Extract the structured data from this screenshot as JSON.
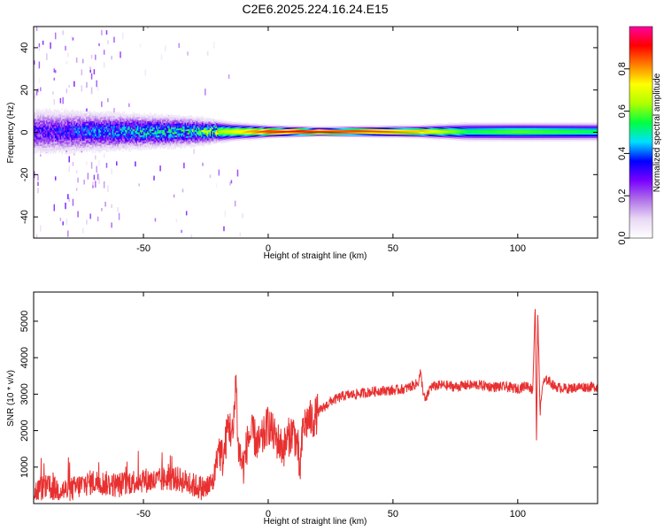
{
  "title": "C2E6.2025.224.16.24.E15",
  "chart_data": [
    {
      "type": "heatmap",
      "xlabel": "Height of straight line (km)",
      "ylabel": "Frequency (Hz)",
      "xlim": [
        -94,
        132
      ],
      "ylim": [
        -50,
        50
      ],
      "xticks": [
        -50,
        0,
        50,
        100
      ],
      "yticks": [
        -40,
        -20,
        0,
        20,
        40
      ],
      "colorbar": {
        "label": "Normalized spectral amplitude",
        "range": [
          0,
          1
        ],
        "ticks": [
          0.0,
          0.2,
          0.4,
          0.6,
          0.8
        ],
        "tick_labels": [
          "0.0",
          "0.2",
          "0.4",
          "0.6",
          "0.8"
        ],
        "colormap": [
          "#ffffff",
          "#e8d8f4",
          "#b070e8",
          "#7800ff",
          "#0000ff",
          "#00e0ff",
          "#00ff40",
          "#b0ff00",
          "#ffff00",
          "#ff8000",
          "#ff0000",
          "#ff00a0"
        ]
      },
      "band_center_hz": 0,
      "band_profile": [
        {
          "x": -90,
          "halfwidth": 8,
          "peak": 0.3
        },
        {
          "x": -70,
          "halfwidth": 7,
          "peak": 0.38
        },
        {
          "x": -50,
          "halfwidth": 6,
          "peak": 0.45
        },
        {
          "x": -30,
          "halfwidth": 5,
          "peak": 0.5
        },
        {
          "x": -15,
          "halfwidth": 3,
          "peak": 0.7
        },
        {
          "x": 0,
          "halfwidth": 2,
          "peak": 0.9
        },
        {
          "x": 20,
          "halfwidth": 1.5,
          "peak": 0.95
        },
        {
          "x": 60,
          "halfwidth": 2,
          "peak": 0.8
        },
        {
          "x": 80,
          "halfwidth": 3,
          "peak": 0.55
        },
        {
          "x": 100,
          "halfwidth": 3,
          "peak": 0.6
        },
        {
          "x": 130,
          "halfwidth": 3,
          "peak": 0.55
        }
      ]
    },
    {
      "type": "line",
      "xlabel": "Height of straight line (km)",
      "ylabel": "SNR (10 * v/v)",
      "xlim": [
        -94,
        132
      ],
      "ylim": [
        0,
        5800
      ],
      "xticks": [
        -50,
        0,
        50,
        100
      ],
      "yticks": [
        1000,
        2000,
        3000,
        4000,
        5000
      ],
      "color": "#e83030",
      "series": [
        {
          "values_x": [
            -94,
            -90,
            -85,
            -80,
            -75,
            -70,
            -65,
            -60,
            -55,
            -50,
            -45,
            -40,
            -35,
            -30,
            -25,
            -22,
            -20,
            -18,
            -16,
            -14,
            -13,
            -12,
            -10,
            -8,
            -6,
            -4,
            -2,
            0,
            2,
            4,
            6,
            8,
            10,
            12,
            12.5,
            14,
            16,
            18,
            20,
            25,
            30,
            35,
            40,
            45,
            50,
            55,
            60,
            61,
            62,
            63,
            65,
            70,
            75,
            80,
            85,
            90,
            95,
            100,
            104,
            106,
            107,
            107.5,
            108,
            109,
            110,
            112,
            115,
            120,
            125,
            132
          ],
          "values_y": [
            300,
            450,
            400,
            350,
            500,
            600,
            550,
            500,
            600,
            650,
            600,
            700,
            650,
            500,
            400,
            600,
            1500,
            1200,
            2200,
            1800,
            3600,
            1500,
            1000,
            1800,
            1900,
            1600,
            1800,
            2200,
            1900,
            1700,
            1500,
            1800,
            2000,
            1500,
            700,
            2100,
            2300,
            2300,
            2500,
            2800,
            2950,
            3000,
            3050,
            3100,
            3100,
            3150,
            3300,
            3600,
            3100,
            2800,
            3200,
            3250,
            3200,
            3250,
            3250,
            3200,
            3200,
            3150,
            3250,
            3100,
            5500,
            1500,
            5200,
            2500,
            3300,
            3400,
            3200,
            3150,
            3200,
            3200
          ]
        }
      ]
    }
  ]
}
